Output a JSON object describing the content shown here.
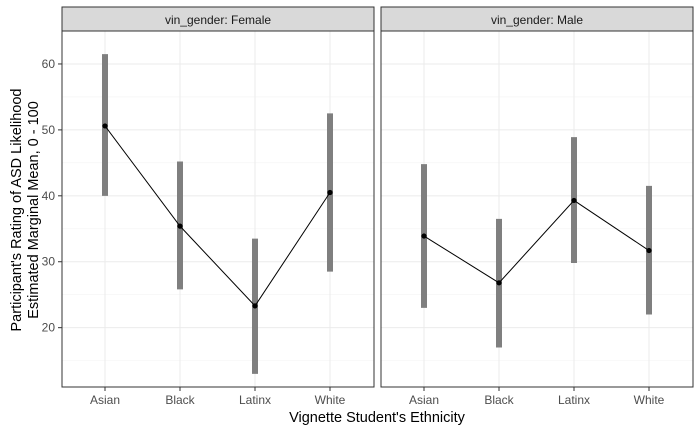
{
  "chart_data": {
    "type": "line",
    "xlabel": "Vignette Student's Ethnicity",
    "ylabel_line1": "Participant's Rating of ASD Likelihood",
    "ylabel_line2": "Estimated Marginal Mean, 0 - 100",
    "categories": [
      "Asian",
      "Black",
      "Latinx",
      "White"
    ],
    "ylim": [
      11,
      65
    ],
    "yticks": [
      20,
      30,
      40,
      50,
      60
    ],
    "grid": true,
    "colors": {
      "errorbar": "#7f7f7f",
      "line": "#000000",
      "point": "#000000",
      "strip_fill": "#d9d9d9",
      "grid": "#ebebeb"
    },
    "panels": [
      {
        "strip": "vin_gender: Female",
        "means": [
          50.6,
          35.4,
          23.3,
          40.5
        ],
        "lower": [
          40.0,
          25.8,
          13.0,
          28.5
        ],
        "upper": [
          61.5,
          45.2,
          33.5,
          52.5
        ]
      },
      {
        "strip": "vin_gender: Male",
        "means": [
          33.9,
          26.8,
          39.3,
          31.7
        ],
        "lower": [
          23.0,
          17.0,
          29.8,
          22.0
        ],
        "upper": [
          44.8,
          36.5,
          48.9,
          41.5
        ]
      }
    ]
  }
}
